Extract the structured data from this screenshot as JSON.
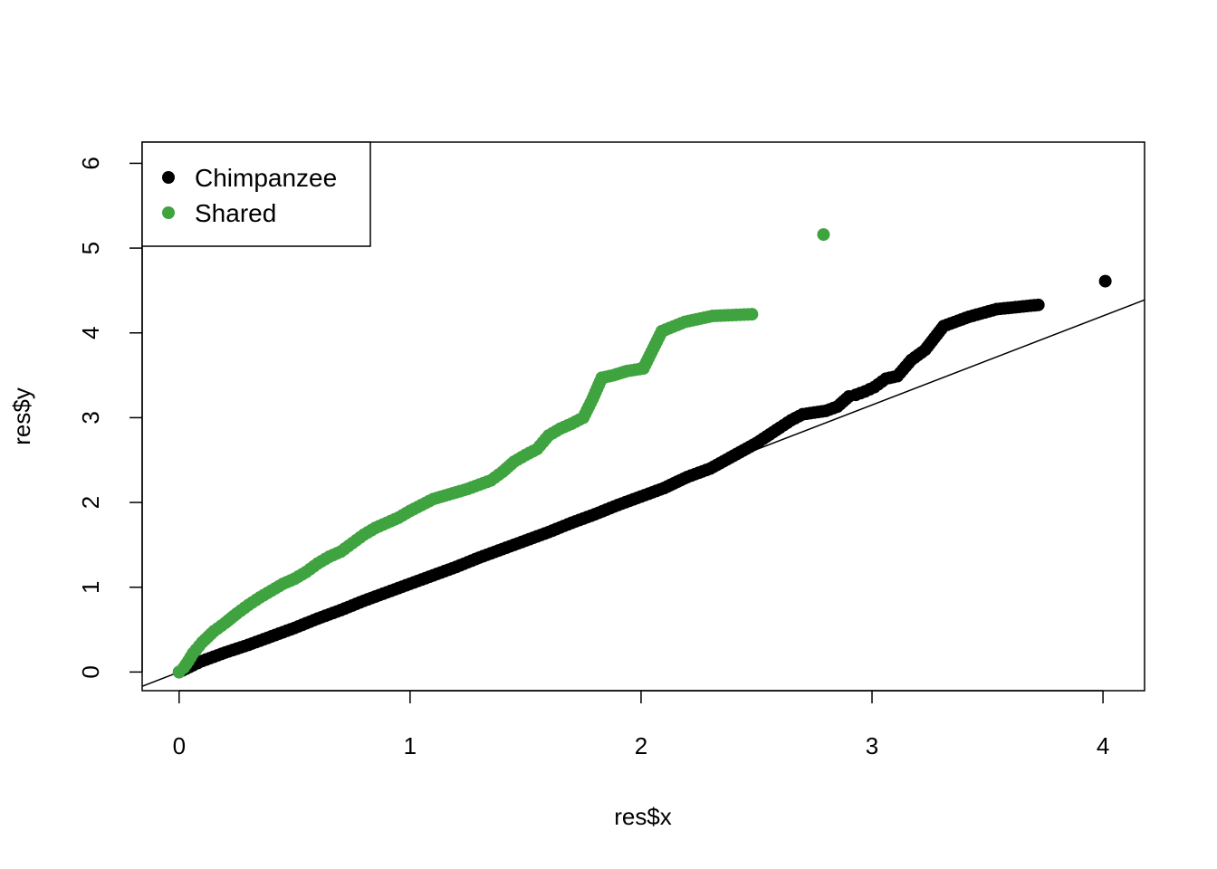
{
  "chart_data": {
    "type": "scatter",
    "xlabel": "res$x",
    "ylabel": "res$y",
    "xlim": [
      -0.16,
      4.18
    ],
    "ylim": [
      -0.22,
      6.25
    ],
    "x_ticks": [
      0,
      1,
      2,
      3,
      4
    ],
    "y_ticks": [
      0,
      1,
      2,
      3,
      4,
      5,
      6
    ],
    "legend": {
      "position": "top-left",
      "entries": [
        {
          "label": "Chimpanzee",
          "color": "#000000"
        },
        {
          "label": "Shared",
          "color": "#3fa33f"
        }
      ]
    },
    "reference_line": {
      "slope": 1.05,
      "intercept": 0.0
    },
    "series": [
      {
        "name": "Chimpanzee",
        "color": "#000000",
        "points": [
          [
            0.0,
            0.0
          ],
          [
            0.03,
            0.04
          ],
          [
            0.06,
            0.08
          ],
          [
            0.1,
            0.13
          ],
          [
            0.15,
            0.18
          ],
          [
            0.2,
            0.23
          ],
          [
            0.3,
            0.32
          ],
          [
            0.4,
            0.42
          ],
          [
            0.5,
            0.52
          ],
          [
            0.6,
            0.63
          ],
          [
            0.7,
            0.73
          ],
          [
            0.8,
            0.84
          ],
          [
            0.9,
            0.94
          ],
          [
            1.0,
            1.04
          ],
          [
            1.1,
            1.14
          ],
          [
            1.2,
            1.24
          ],
          [
            1.3,
            1.35
          ],
          [
            1.4,
            1.45
          ],
          [
            1.5,
            1.55
          ],
          [
            1.6,
            1.65
          ],
          [
            1.7,
            1.76
          ],
          [
            1.8,
            1.86
          ],
          [
            1.9,
            1.97
          ],
          [
            2.0,
            2.07
          ],
          [
            2.1,
            2.17
          ],
          [
            2.2,
            2.3
          ],
          [
            2.3,
            2.4
          ],
          [
            2.4,
            2.55
          ],
          [
            2.5,
            2.7
          ],
          [
            2.6,
            2.88
          ],
          [
            2.65,
            2.97
          ],
          [
            2.7,
            3.04
          ],
          [
            2.75,
            3.06
          ],
          [
            2.8,
            3.08
          ],
          [
            2.85,
            3.13
          ],
          [
            2.9,
            3.25
          ],
          [
            2.93,
            3.27
          ],
          [
            2.97,
            3.31
          ],
          [
            3.01,
            3.36
          ],
          [
            3.06,
            3.46
          ],
          [
            3.11,
            3.49
          ],
          [
            3.17,
            3.68
          ],
          [
            3.23,
            3.8
          ],
          [
            3.31,
            4.08
          ],
          [
            3.42,
            4.19
          ],
          [
            3.54,
            4.28
          ],
          [
            3.72,
            4.33
          ],
          [
            4.01,
            4.61
          ]
        ]
      },
      {
        "name": "Shared",
        "color": "#3fa33f",
        "points": [
          [
            0.0,
            0.0
          ],
          [
            0.02,
            0.05
          ],
          [
            0.04,
            0.13
          ],
          [
            0.06,
            0.22
          ],
          [
            0.1,
            0.35
          ],
          [
            0.15,
            0.48
          ],
          [
            0.2,
            0.58
          ],
          [
            0.25,
            0.69
          ],
          [
            0.3,
            0.79
          ],
          [
            0.35,
            0.88
          ],
          [
            0.4,
            0.96
          ],
          [
            0.45,
            1.04
          ],
          [
            0.5,
            1.1
          ],
          [
            0.55,
            1.18
          ],
          [
            0.6,
            1.28
          ],
          [
            0.65,
            1.36
          ],
          [
            0.7,
            1.42
          ],
          [
            0.75,
            1.52
          ],
          [
            0.8,
            1.62
          ],
          [
            0.85,
            1.7
          ],
          [
            0.9,
            1.76
          ],
          [
            0.95,
            1.82
          ],
          [
            1.0,
            1.9
          ],
          [
            1.05,
            1.97
          ],
          [
            1.1,
            2.04
          ],
          [
            1.15,
            2.08
          ],
          [
            1.2,
            2.12
          ],
          [
            1.25,
            2.16
          ],
          [
            1.3,
            2.21
          ],
          [
            1.35,
            2.26
          ],
          [
            1.4,
            2.36
          ],
          [
            1.45,
            2.48
          ],
          [
            1.5,
            2.56
          ],
          [
            1.55,
            2.63
          ],
          [
            1.6,
            2.79
          ],
          [
            1.65,
            2.87
          ],
          [
            1.7,
            2.93
          ],
          [
            1.75,
            3.0
          ],
          [
            1.79,
            3.22
          ],
          [
            1.83,
            3.47
          ],
          [
            1.88,
            3.5
          ],
          [
            1.94,
            3.55
          ],
          [
            2.01,
            3.58
          ],
          [
            2.09,
            4.02
          ],
          [
            2.19,
            4.13
          ],
          [
            2.31,
            4.2
          ],
          [
            2.48,
            4.22
          ],
          [
            2.79,
            5.16
          ]
        ]
      }
    ]
  }
}
